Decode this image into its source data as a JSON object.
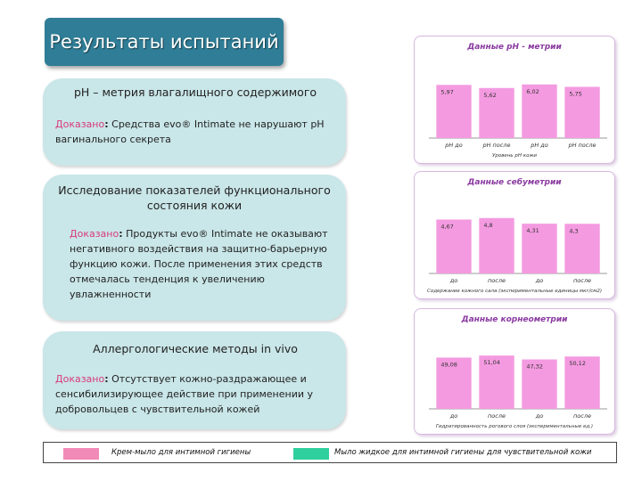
{
  "title": "Результаты испытаний",
  "cards": [
    {
      "heading": "рН – метрия влагалищного содержимого",
      "proven": "Доказано",
      "colon": ":",
      "text": " Средства evo® Intimate не нарушают рН вагинального секрета"
    },
    {
      "heading": "Исследование показателей функционального состояния кожи",
      "proven": "Доказано",
      "colon": ":",
      "text": " Продукты evo® Intimate не оказывают негативного воздействия на защитно-барьерную функцию кожи. После применения этих средств отмечалась тенденция к увеличению увлажненности"
    },
    {
      "heading": "Аллергологические методы  in vivo",
      "proven": "Доказано",
      "colon": ":",
      "text": " Отсутствует кожно-раздражающее и сенсибилизирующее действие при применении у добровольцев с чувствительной кожей"
    }
  ],
  "colors": {
    "pink": "#f49ae0",
    "title_bg": "#2f7d96",
    "card_bg": "#c9e6e8",
    "chart_title": "#8a3aa0",
    "legend_pink": "#f28ab8",
    "legend_green": "#2fcf9e"
  },
  "legend": [
    {
      "label": "Крем-мыло для интимной гигиены",
      "color": "#f28ab8"
    },
    {
      "label": "Мыло жидкое для интимной гигиены для чувствительной кожи",
      "color": "#2fcf9e"
    }
  ],
  "chart_data": [
    {
      "type": "bar",
      "title": "Данные рН - метрии",
      "categories": [
        "рН до",
        "рН после",
        "рН до",
        "рН после"
      ],
      "values": [
        5.97,
        5.62,
        6.02,
        5.75
      ],
      "value_labels": [
        "5,97",
        "5,62",
        "6,02",
        "5,75"
      ],
      "xlabel": "Уровень рН кожи",
      "ylim": [
        0,
        7
      ]
    },
    {
      "type": "bar",
      "title": "Данные себуметрии",
      "categories": [
        "до",
        "после",
        "до",
        "после"
      ],
      "values": [
        4.67,
        4.8,
        4.31,
        4.3
      ],
      "value_labels": [
        "4,67",
        "4,8",
        "4,31",
        "4,3"
      ],
      "xlabel": "Содержание кожного сала (экспериментальные единицы мкг/см2)",
      "ylim": [
        0,
        5.4
      ]
    },
    {
      "type": "bar",
      "title": "Данные корнеометрии",
      "categories": [
        "до",
        "после",
        "до",
        "после"
      ],
      "values": [
        49.08,
        51.04,
        47.32,
        50.12
      ],
      "value_labels": [
        "49,08",
        "51,04",
        "47,32",
        "50,12"
      ],
      "xlabel": "Гидратированность рогового слоя (экспериментальные ед.)",
      "ylim": [
        0,
        58
      ]
    }
  ]
}
